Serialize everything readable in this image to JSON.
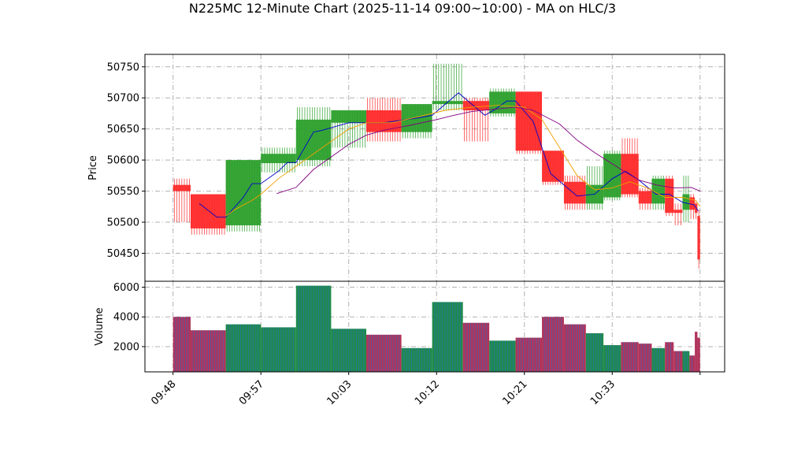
{
  "chart_data": {
    "type": "candlestick",
    "title": "N225MC 12-Minute Chart (2025-11-14 09:00~10:00) - MA on HLC/3",
    "price_panel": {
      "ylabel": "Price",
      "ylim": [
        50405,
        50770
      ],
      "yticks": [
        50450,
        50500,
        50550,
        50600,
        50650,
        50700,
        50750
      ],
      "grid": true
    },
    "volume_panel": {
      "ylabel": "Volume",
      "ylim": [
        300,
        6400
      ],
      "yticks": [
        2000,
        4000,
        6000
      ],
      "grid": true
    },
    "xticks": [
      {
        "label": "09:48",
        "x": 0
      },
      {
        "label": "09:57",
        "x": 10
      },
      {
        "label": "10:03",
        "x": 20
      },
      {
        "label": "10:12",
        "x": 30
      },
      {
        "label": "10:21",
        "x": 40
      },
      {
        "label": "10:33",
        "x": 50
      },
      {
        "label": "",
        "x": 60
      }
    ],
    "candles": [
      {
        "x": 0,
        "w": 2,
        "open": 50560,
        "close": 50550,
        "high": 50570,
        "low": 50500,
        "volume": 4000
      },
      {
        "x": 2,
        "w": 4,
        "open": 50545,
        "close": 50490,
        "high": 50545,
        "low": 50480,
        "volume": 3100
      },
      {
        "x": 6,
        "w": 4,
        "open": 50495,
        "close": 50600,
        "high": 50600,
        "low": 50485,
        "volume": 3500
      },
      {
        "x": 10,
        "w": 4,
        "open": 50595,
        "close": 50610,
        "high": 50620,
        "low": 50580,
        "volume": 3300
      },
      {
        "x": 14,
        "w": 4,
        "open": 50600,
        "close": 50665,
        "high": 50685,
        "low": 50590,
        "volume": 6100
      },
      {
        "x": 18,
        "w": 4,
        "open": 50660,
        "close": 50680,
        "high": 50680,
        "low": 50620,
        "volume": 3200
      },
      {
        "x": 22,
        "w": 4,
        "open": 50680,
        "close": 50645,
        "high": 50700,
        "low": 50630,
        "volume": 2800
      },
      {
        "x": 26,
        "w": 3.5,
        "open": 50645,
        "close": 50690,
        "high": 50690,
        "low": 50635,
        "volume": 1900
      },
      {
        "x": 29.5,
        "w": 3.5,
        "open": 50690,
        "close": 50695,
        "high": 50755,
        "low": 50680,
        "volume": 5000
      },
      {
        "x": 33,
        "w": 3,
        "open": 50695,
        "close": 50680,
        "high": 50700,
        "low": 50630,
        "volume": 3600
      },
      {
        "x": 36,
        "w": 3,
        "open": 50675,
        "close": 50710,
        "high": 50715,
        "low": 50670,
        "volume": 2400
      },
      {
        "x": 39,
        "w": 3,
        "open": 50710,
        "close": 50615,
        "high": 50710,
        "low": 50610,
        "volume": 2600
      },
      {
        "x": 42,
        "w": 2.5,
        "open": 50615,
        "close": 50565,
        "high": 50615,
        "low": 50560,
        "volume": 4000
      },
      {
        "x": 44.5,
        "w": 2.5,
        "open": 50565,
        "close": 50530,
        "high": 50575,
        "low": 50520,
        "volume": 3500
      },
      {
        "x": 47,
        "w": 2,
        "open": 50530,
        "close": 50560,
        "high": 50590,
        "low": 50520,
        "volume": 2900
      },
      {
        "x": 49,
        "w": 2,
        "open": 50540,
        "close": 50610,
        "high": 50615,
        "low": 50535,
        "volume": 2100
      },
      {
        "x": 51,
        "w": 2,
        "open": 50610,
        "close": 50545,
        "high": 50635,
        "low": 50540,
        "volume": 2300
      },
      {
        "x": 53,
        "w": 1.5,
        "open": 50550,
        "close": 50530,
        "high": 50555,
        "low": 50520,
        "volume": 2200
      },
      {
        "x": 54.5,
        "w": 1.5,
        "open": 50530,
        "close": 50570,
        "high": 50575,
        "low": 50520,
        "volume": 1900
      },
      {
        "x": 56,
        "w": 1,
        "open": 50570,
        "close": 50515,
        "high": 50575,
        "low": 50510,
        "volume": 2300
      },
      {
        "x": 57,
        "w": 1,
        "open": 50520,
        "close": 50515,
        "high": 50530,
        "low": 50495,
        "volume": 1700
      },
      {
        "x": 58,
        "w": 0.8,
        "open": 50520,
        "close": 50545,
        "high": 50575,
        "low": 50500,
        "volume": 1700
      },
      {
        "x": 58.8,
        "w": 0.6,
        "open": 50540,
        "close": 50520,
        "high": 50545,
        "low": 50505,
        "volume": 1400
      },
      {
        "x": 59.4,
        "w": 0.3,
        "open": 50530,
        "close": 50515,
        "high": 50535,
        "low": 50505,
        "volume": 3000
      },
      {
        "x": 59.7,
        "w": 0.3,
        "open": 50510,
        "close": 50440,
        "high": 50520,
        "low": 50425,
        "volume": 2600
      }
    ],
    "ma_series": [
      {
        "color": "#0000cc",
        "points": [
          [
            3,
            50530
          ],
          [
            5,
            50508
          ],
          [
            6,
            50508
          ],
          [
            8,
            50540
          ],
          [
            9,
            50562
          ],
          [
            10,
            50562
          ],
          [
            12,
            50582
          ],
          [
            13,
            50596
          ],
          [
            14,
            50596
          ],
          [
            16,
            50645
          ],
          [
            17,
            50648
          ],
          [
            20,
            50660
          ],
          [
            24,
            50660
          ],
          [
            28,
            50668
          ],
          [
            29.5,
            50672
          ],
          [
            31,
            50690
          ],
          [
            32.5,
            50708
          ],
          [
            34,
            50690
          ],
          [
            35.5,
            50672
          ],
          [
            36.5,
            50680
          ],
          [
            38,
            50695
          ],
          [
            39,
            50695
          ],
          [
            41,
            50662
          ],
          [
            43,
            50578
          ],
          [
            44.5,
            50560
          ],
          [
            46,
            50542
          ],
          [
            48,
            50545
          ],
          [
            50,
            50570
          ],
          [
            51.5,
            50582
          ],
          [
            53,
            50568
          ],
          [
            55,
            50545
          ],
          [
            56.5,
            50545
          ],
          [
            58,
            50532
          ],
          [
            59.3,
            50528
          ],
          [
            59.8,
            50518
          ]
        ]
      },
      {
        "color": "#f0a000",
        "points": [
          [
            6,
            50510
          ],
          [
            7,
            50520
          ],
          [
            9,
            50535
          ],
          [
            10,
            50545
          ],
          [
            12,
            50570
          ],
          [
            14,
            50590
          ],
          [
            16,
            50610
          ],
          [
            18,
            50630
          ],
          [
            20,
            50650
          ],
          [
            22,
            50660
          ],
          [
            25,
            50660
          ],
          [
            28,
            50670
          ],
          [
            31,
            50680
          ],
          [
            34,
            50685
          ],
          [
            37,
            50688
          ],
          [
            40,
            50685
          ],
          [
            42,
            50665
          ],
          [
            44,
            50620
          ],
          [
            46,
            50575
          ],
          [
            48,
            50552
          ],
          [
            50,
            50555
          ],
          [
            52,
            50565
          ],
          [
            54,
            50555
          ],
          [
            56,
            50540
          ],
          [
            58,
            50540
          ],
          [
            59.5,
            50535
          ],
          [
            60,
            50525
          ]
        ]
      },
      {
        "color": "#800080",
        "points": [
          [
            11.8,
            50546
          ],
          [
            14,
            50556
          ],
          [
            16,
            50585
          ],
          [
            18,
            50605
          ],
          [
            20,
            50625
          ],
          [
            22,
            50640
          ],
          [
            24,
            50648
          ],
          [
            27,
            50656
          ],
          [
            30,
            50665
          ],
          [
            32,
            50672
          ],
          [
            34,
            50678
          ],
          [
            36,
            50681
          ],
          [
            39,
            50685
          ],
          [
            41,
            50680
          ],
          [
            44,
            50658
          ],
          [
            46,
            50632
          ],
          [
            48,
            50612
          ],
          [
            51,
            50585
          ],
          [
            53,
            50568
          ],
          [
            55,
            50560
          ],
          [
            57,
            50555
          ],
          [
            59,
            50556
          ],
          [
            60,
            50550
          ]
        ]
      }
    ]
  }
}
